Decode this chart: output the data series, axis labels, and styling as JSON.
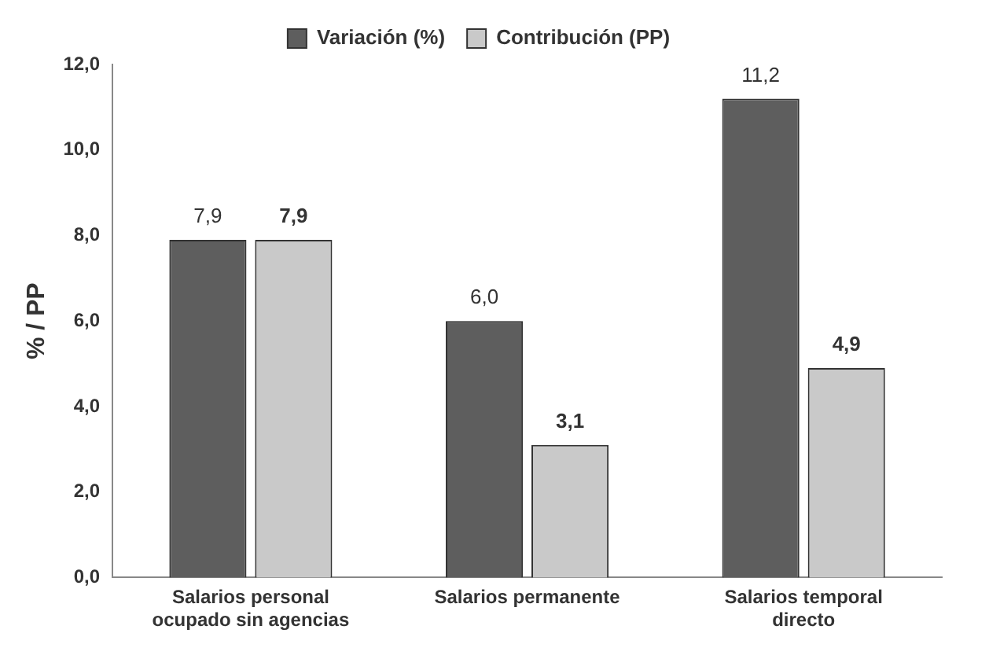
{
  "chart_data": {
    "type": "bar",
    "ylabel": "% / PP",
    "categories": [
      "Salarios personal ocupado sin agencias",
      "Salarios permanente",
      "Salarios temporal directo"
    ],
    "series": [
      {
        "name": "Variación (%)",
        "color": "#5e5e5e",
        "values": [
          7.9,
          6.0,
          11.2
        ],
        "value_labels": [
          "7,9",
          "6,0",
          "11,2"
        ]
      },
      {
        "name": "Contribución (PP)",
        "color": "#c9c9c9",
        "values": [
          7.9,
          3.1,
          4.9
        ],
        "value_labels": [
          "7,9",
          "3,1",
          "4,9"
        ]
      }
    ],
    "ylim": [
      0,
      12
    ],
    "yticks": [
      {
        "value": 0,
        "label": "0,0"
      },
      {
        "value": 2,
        "label": "2,0"
      },
      {
        "value": 4,
        "label": "4,0"
      },
      {
        "value": 6,
        "label": "6,0"
      },
      {
        "value": 8,
        "label": "8,0"
      },
      {
        "value": 10,
        "label": "10,0"
      },
      {
        "value": 12,
        "label": "12,0"
      }
    ],
    "grid": false,
    "legend": "top"
  }
}
